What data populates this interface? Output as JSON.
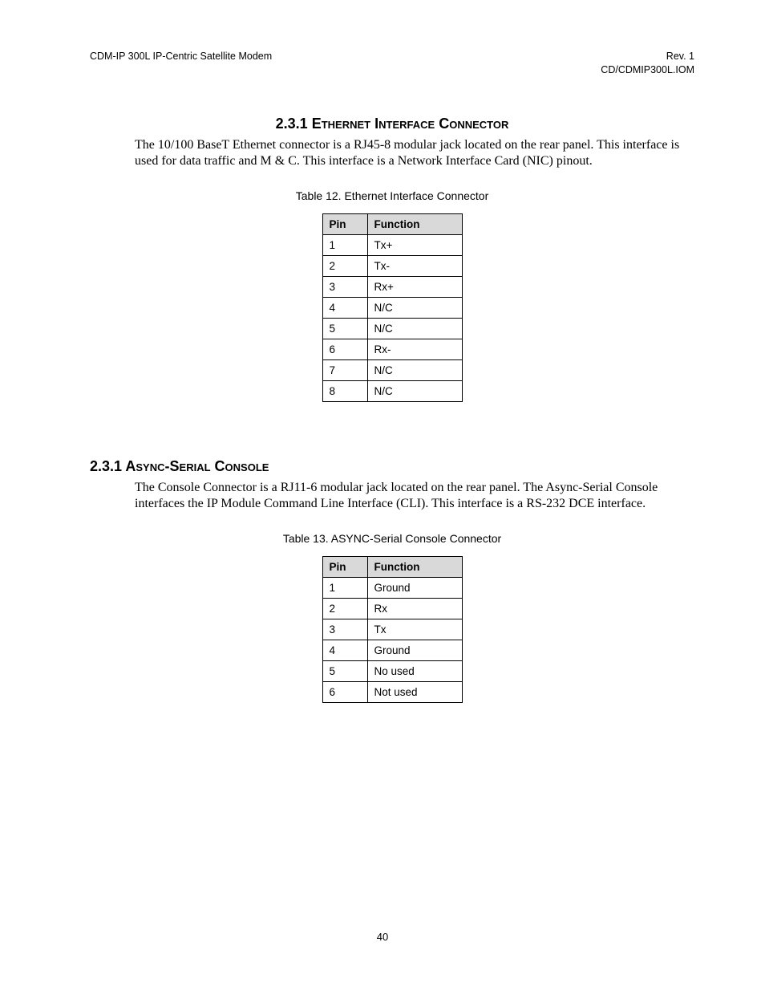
{
  "header": {
    "left": "CDM-IP 300L IP-Centric Satellite Modem",
    "right_line1": "Rev. 1",
    "right_line2": "CD/CDMIP300L.IOM"
  },
  "section1": {
    "number": "2.3.1",
    "title_caps_1": "E",
    "title_sc_1": "thernet",
    "title_caps_2": "I",
    "title_sc_2": "nterface",
    "title_caps_3": "C",
    "title_sc_3": "onnector",
    "para": "The 10/100 BaseT Ethernet connector is a RJ45-8 modular jack located on the rear panel. This interface is used for data traffic and M & C. This interface is a Network Interface Card (NIC) pinout.",
    "table_caption": "Table 12. Ethernet Interface Connector",
    "table": {
      "col_pin_header": "Pin",
      "col_func_header": "Function",
      "rows": [
        {
          "pin": "1",
          "func": "Tx+"
        },
        {
          "pin": "2",
          "func": "Tx-"
        },
        {
          "pin": "3",
          "func": "Rx+"
        },
        {
          "pin": "4",
          "func": "N/C"
        },
        {
          "pin": "5",
          "func": "N/C"
        },
        {
          "pin": "6",
          "func": "Rx-"
        },
        {
          "pin": "7",
          "func": "N/C"
        },
        {
          "pin": "8",
          "func": "N/C"
        }
      ]
    }
  },
  "section2": {
    "number": "2.3.1",
    "title_caps_1": "A",
    "title_sc_1": "sync",
    "title_dash": "-",
    "title_caps_2": "S",
    "title_sc_2": "erial",
    "title_caps_3": "C",
    "title_sc_3": "onsole",
    "para": "The Console Connector is a RJ11-6 modular jack located on the rear panel. The Async-Serial Console interfaces the IP Module Command Line Interface (CLI). This interface is a RS-232 DCE interface.",
    "table_caption": "Table 13. ASYNC-Serial Console Connector",
    "table": {
      "col_pin_header": "Pin",
      "col_func_header": "Function",
      "rows": [
        {
          "pin": "1",
          "func": "Ground"
        },
        {
          "pin": "2",
          "func": "Rx"
        },
        {
          "pin": "3",
          "func": "Tx"
        },
        {
          "pin": "4",
          "func": "Ground"
        },
        {
          "pin": "5",
          "func": "No used"
        },
        {
          "pin": "6",
          "func": "Not used"
        }
      ]
    }
  },
  "footer": {
    "page_number": "40"
  }
}
